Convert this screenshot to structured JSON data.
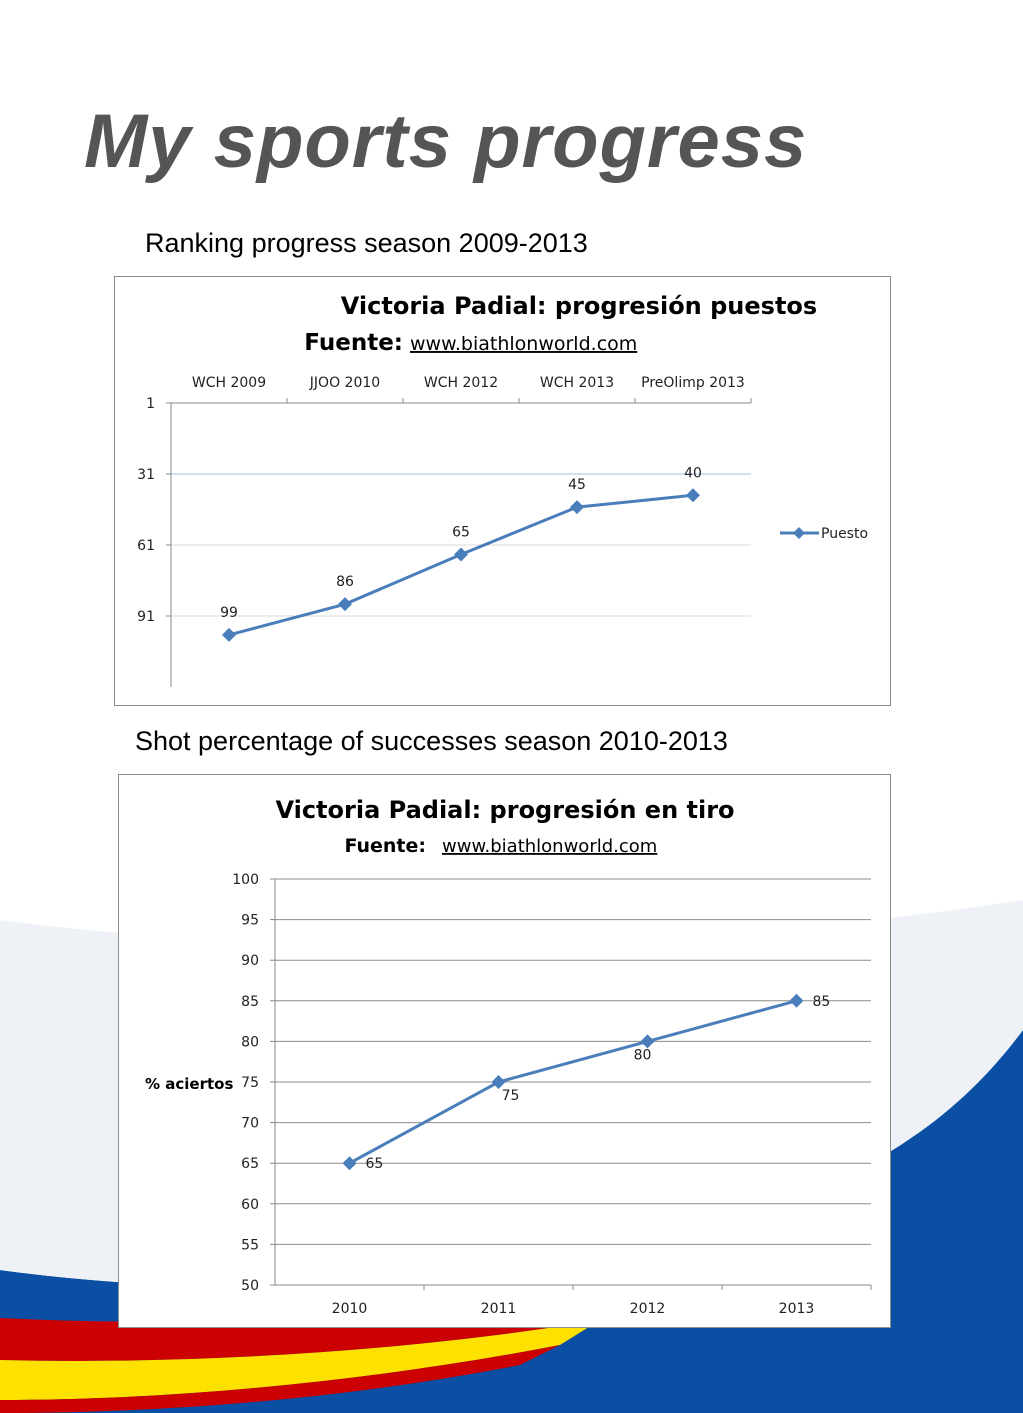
{
  "page": {
    "title": "My sports progress",
    "caption_ranking": "Ranking progress season 2009-2013",
    "caption_shot": "Shot percentage of successes season 2010-2013"
  },
  "colors": {
    "title": "#555555",
    "series_line": "#4a7ebb",
    "grid": "#d9d9d9",
    "highlight_grid": "#9dc3e6",
    "background_blue": "#0a4fa3",
    "background_red": "#cc0000",
    "background_yellow": "#ffe100"
  },
  "chart_data": [
    {
      "type": "line",
      "title": "Victoria Padial: progresión puestos",
      "subtitle_label": "Fuente:",
      "subtitle_link": "www.biathlonworld.com",
      "categories": [
        "WCH 2009",
        "JJOO 2010",
        "WCH 2012",
        "WCH 2013",
        "PreOlimp 2013"
      ],
      "series": [
        {
          "name": "Puesto",
          "values": [
            99,
            86,
            65,
            45,
            40
          ]
        }
      ],
      "y_ticks": [
        1,
        31,
        61,
        91
      ],
      "ylim": [
        1,
        121
      ],
      "y_reversed": true,
      "x_axis_position": "top",
      "legend": "right",
      "grid": true
    },
    {
      "type": "line",
      "title": "Victoria Padial: progresión en tiro",
      "subtitle_label": "Fuente:",
      "subtitle_link": "www.biathlonworld.com",
      "categories": [
        "2010",
        "2011",
        "2012",
        "2013"
      ],
      "series": [
        {
          "values": [
            65,
            75,
            80,
            85
          ]
        }
      ],
      "y_ticks": [
        50,
        55,
        60,
        65,
        70,
        75,
        80,
        85,
        90,
        95,
        100
      ],
      "ylim": [
        50,
        100
      ],
      "ylabel": "% aciertos",
      "grid": true
    }
  ]
}
